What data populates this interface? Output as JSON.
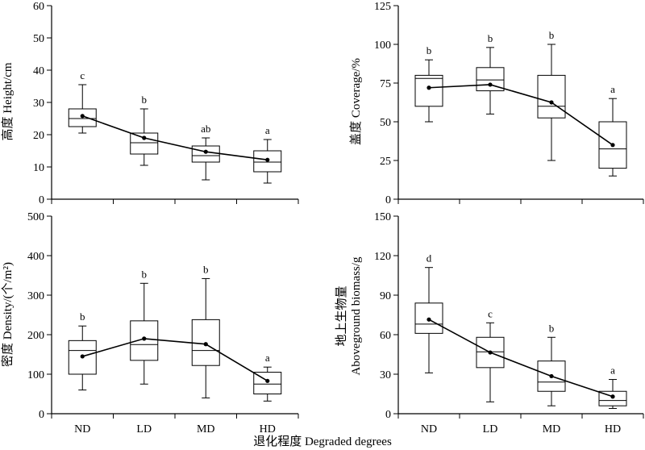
{
  "xlabel": "退化程度 Degraded degrees",
  "chart_data": [
    {
      "type": "box",
      "ylabel": "高度 Height/cm",
      "ylim": [
        0,
        60
      ],
      "yticks": [
        0,
        10,
        20,
        30,
        40,
        50,
        60
      ],
      "categories": [
        "ND",
        "LD",
        "MD",
        "HD"
      ],
      "boxes": [
        {
          "min": 20.5,
          "q1": 22.5,
          "median": 25,
          "q3": 28,
          "max": 35.5
        },
        {
          "min": 10.5,
          "q1": 14,
          "median": 17.5,
          "q3": 20.5,
          "max": 28
        },
        {
          "min": 6,
          "q1": 11.5,
          "median": 13.5,
          "q3": 16.5,
          "max": 19
        },
        {
          "min": 5,
          "q1": 8.5,
          "median": 11.5,
          "q3": 15,
          "max": 18.5
        }
      ],
      "means": [
        25.8,
        19,
        14.7,
        12.2
      ],
      "letters": [
        "c",
        "b",
        "ab",
        "a"
      ]
    },
    {
      "type": "box",
      "ylabel": "盖度 Coverage/%",
      "ylim": [
        0,
        125
      ],
      "yticks": [
        0,
        25,
        50,
        75,
        100,
        125
      ],
      "categories": [
        "ND",
        "LD",
        "MD",
        "HD"
      ],
      "boxes": [
        {
          "min": 50,
          "q1": 60,
          "median": 78,
          "q3": 80,
          "max": 90
        },
        {
          "min": 55,
          "q1": 70,
          "median": 77,
          "q3": 85,
          "max": 98
        },
        {
          "min": 25,
          "q1": 52.5,
          "median": 60,
          "q3": 80,
          "max": 100
        },
        {
          "min": 15,
          "q1": 20,
          "median": 32.5,
          "q3": 50,
          "max": 65
        }
      ],
      "means": [
        72,
        74,
        62.5,
        35
      ],
      "letters": [
        "b",
        "b",
        "b",
        "a"
      ]
    },
    {
      "type": "box",
      "ylabel": "密度 Density/(个/m²)",
      "ylim": [
        0,
        500
      ],
      "yticks": [
        0,
        100,
        200,
        300,
        400,
        500
      ],
      "categories": [
        "ND",
        "LD",
        "MD",
        "HD"
      ],
      "boxes": [
        {
          "min": 60,
          "q1": 100,
          "median": 160,
          "q3": 185,
          "max": 222
        },
        {
          "min": 75,
          "q1": 135,
          "median": 175,
          "q3": 235,
          "max": 330
        },
        {
          "min": 40,
          "q1": 122,
          "median": 160,
          "q3": 238,
          "max": 342
        },
        {
          "min": 32,
          "q1": 50,
          "median": 75,
          "q3": 105,
          "max": 118
        }
      ],
      "means": [
        145,
        190,
        176,
        83
      ],
      "letters": [
        "b",
        "b",
        "b",
        "a"
      ]
    },
    {
      "type": "box",
      "ylabel_line1": "地上生物量",
      "ylabel_line2": "Aboveground biomass/g",
      "ylim": [
        0,
        150
      ],
      "yticks": [
        0,
        30,
        60,
        90,
        120,
        150
      ],
      "categories": [
        "ND",
        "LD",
        "MD",
        "HD"
      ],
      "boxes": [
        {
          "min": 31,
          "q1": 61,
          "median": 68,
          "q3": 84,
          "max": 111
        },
        {
          "min": 9,
          "q1": 35,
          "median": 47,
          "q3": 58,
          "max": 69
        },
        {
          "min": 6,
          "q1": 17,
          "median": 24,
          "q3": 40,
          "max": 58
        },
        {
          "min": 4,
          "q1": 6,
          "median": 10,
          "q3": 17,
          "max": 26
        }
      ],
      "means": [
        71.5,
        46.5,
        28.5,
        13
      ],
      "letters": [
        "d",
        "c",
        "b",
        "a"
      ]
    }
  ]
}
